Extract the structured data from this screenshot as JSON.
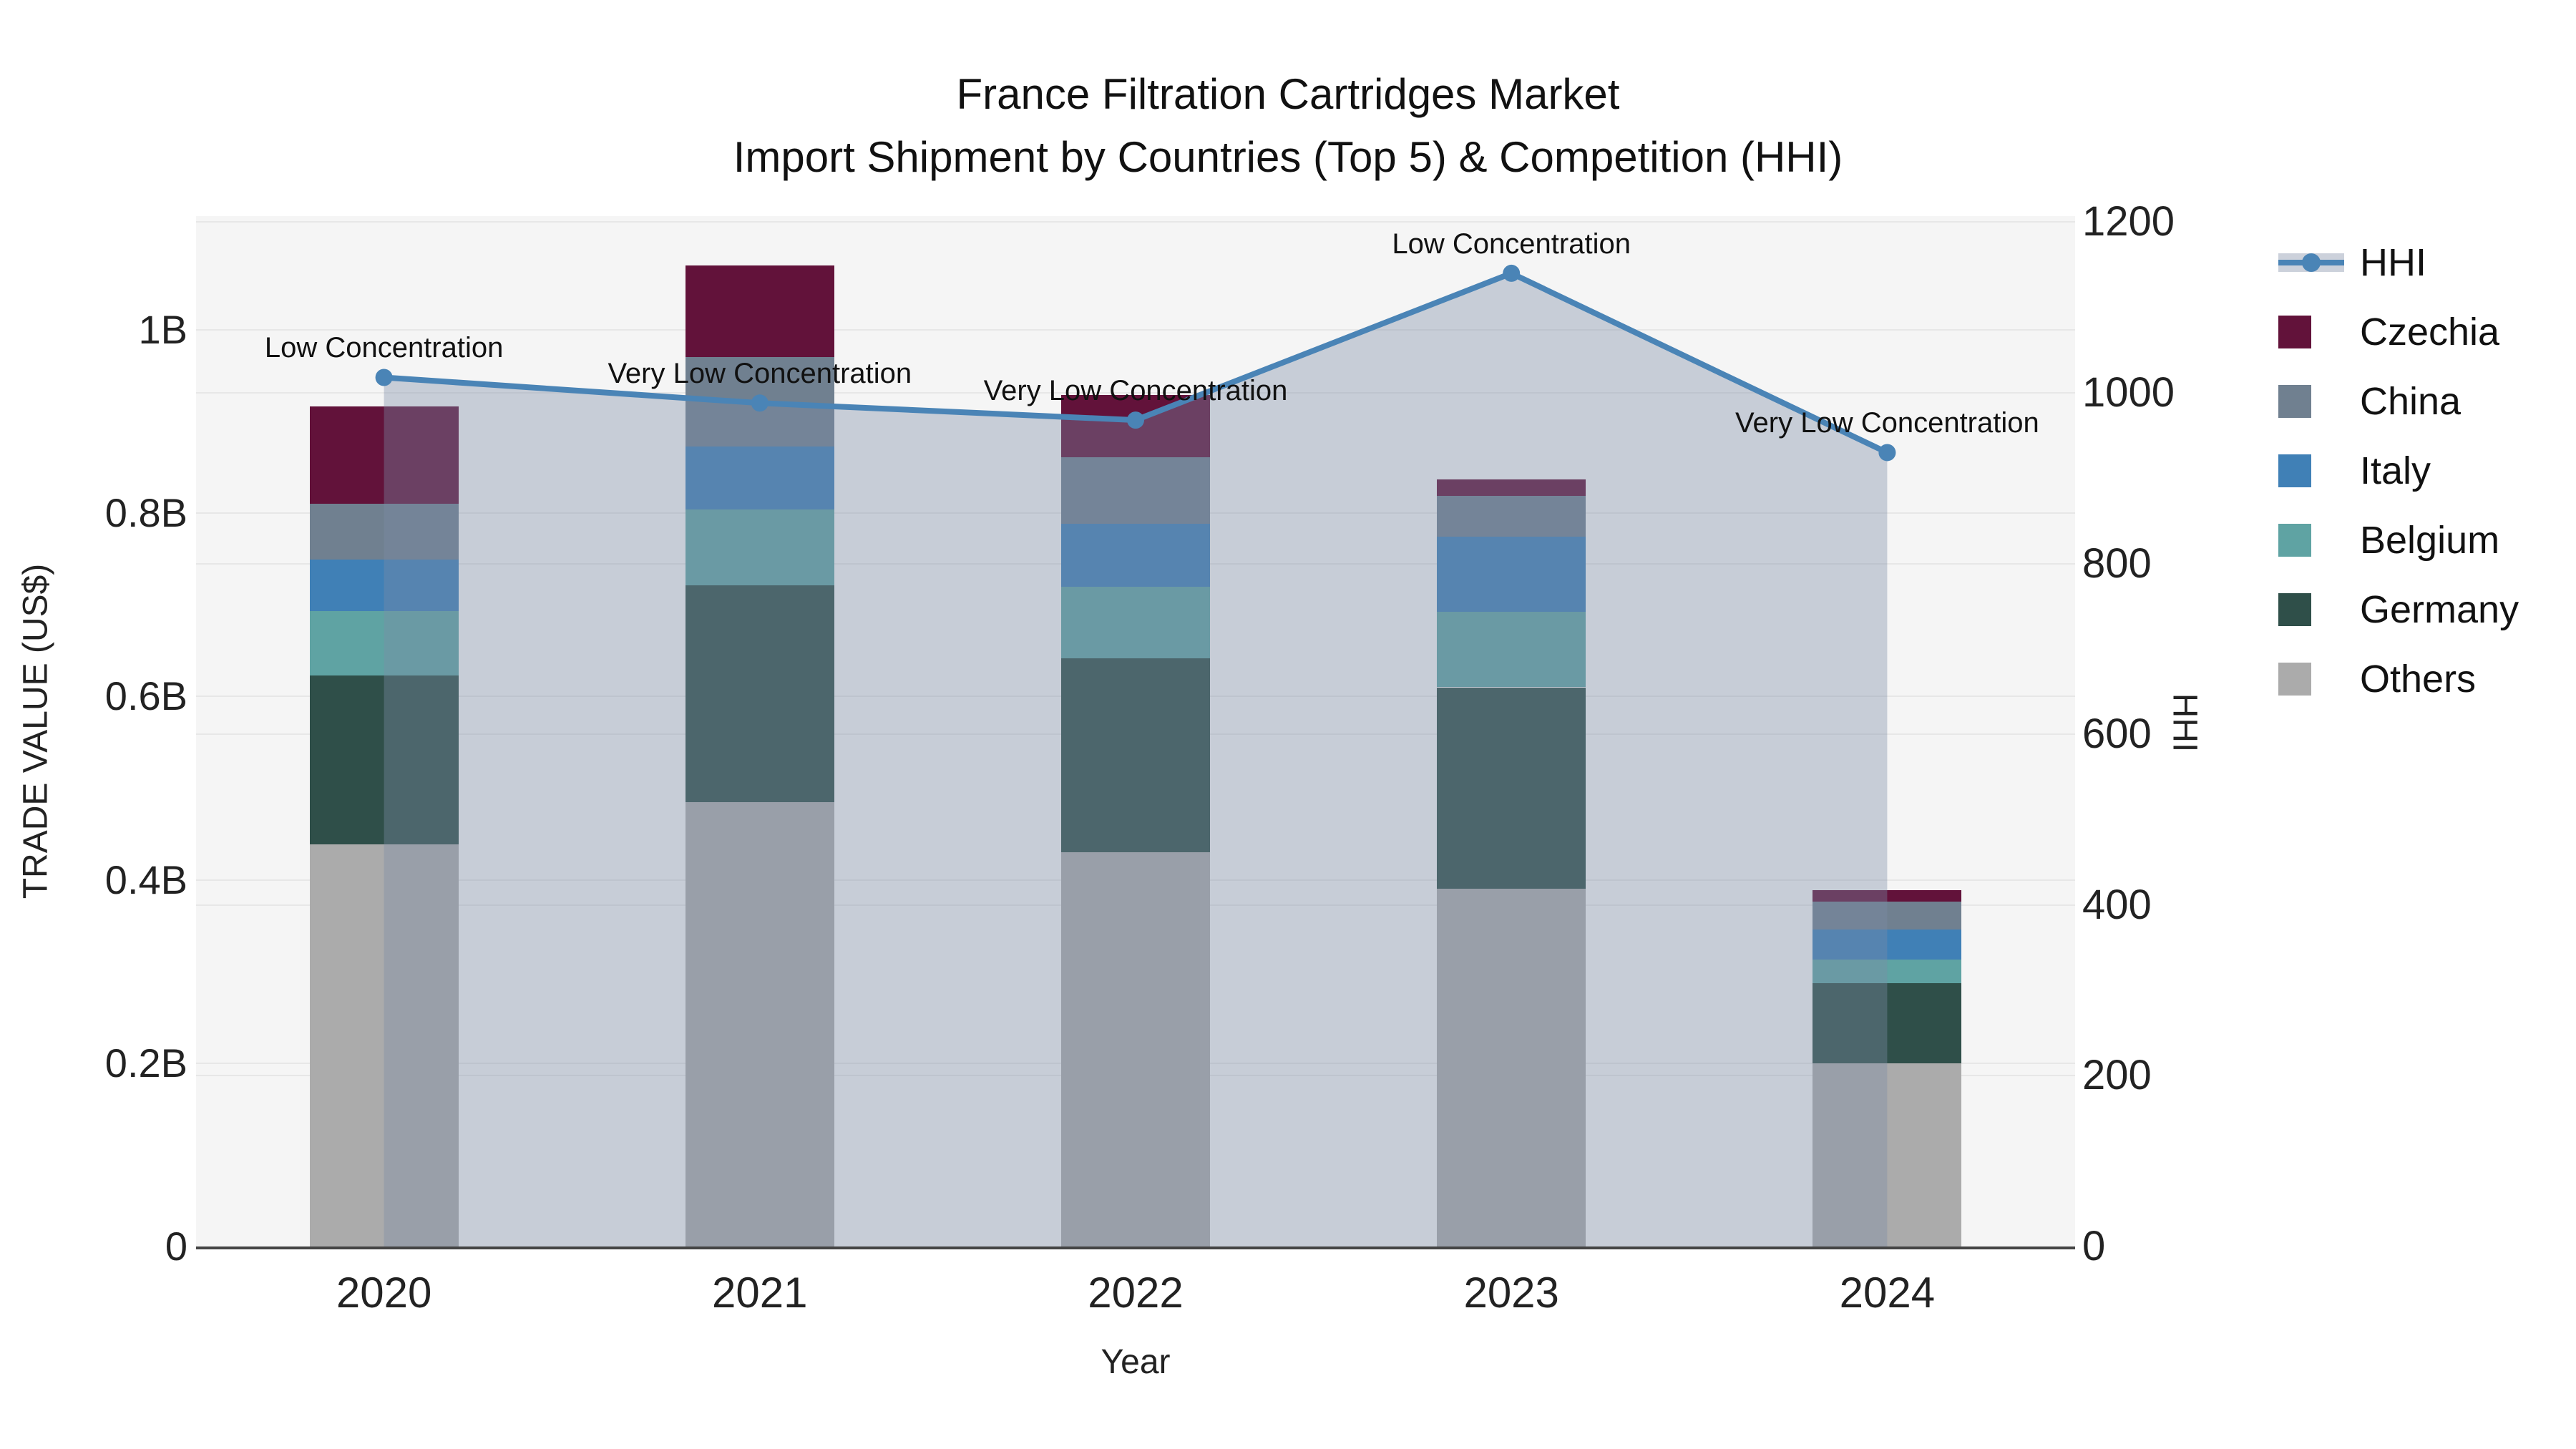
{
  "title": {
    "line1": "France Filtration Cartridges Market",
    "line2": "Import Shipment by Countries (Top 5) & Competition (HHI)"
  },
  "axes": {
    "x": {
      "title": "Year",
      "categories": [
        "2020",
        "2021",
        "2022",
        "2023",
        "2024"
      ]
    },
    "y_left": {
      "title": "TRADE VALUE (US$)",
      "ticks": [
        {
          "label": "0",
          "value": 0.0
        },
        {
          "label": "0.2B",
          "value": 0.2
        },
        {
          "label": "0.4B",
          "value": 0.4
        },
        {
          "label": "0.6B",
          "value": 0.6
        },
        {
          "label": "0.8B",
          "value": 0.8
        },
        {
          "label": "1B",
          "value": 1.0
        }
      ],
      "range_max_B": 1.124
    },
    "y_right": {
      "title": "HHI",
      "ticks": [
        {
          "label": "0",
          "value": 0
        },
        {
          "label": "200",
          "value": 200
        },
        {
          "label": "400",
          "value": 400
        },
        {
          "label": "600",
          "value": 600
        },
        {
          "label": "800",
          "value": 800
        },
        {
          "label": "1000",
          "value": 1000
        },
        {
          "label": "1200",
          "value": 1200
        }
      ],
      "range_max": 1207
    }
  },
  "legend": {
    "items": [
      {
        "label": "HHI",
        "symbol": "line",
        "color": "#4a84b6"
      },
      {
        "label": "Czechia",
        "symbol": "swatch",
        "color": "#62123a"
      },
      {
        "label": "China",
        "symbol": "swatch",
        "color": "#708090"
      },
      {
        "label": "Italy",
        "symbol": "swatch",
        "color": "#4080b6"
      },
      {
        "label": "Belgium",
        "symbol": "swatch",
        "color": "#5fa3a3"
      },
      {
        "label": "Germany",
        "symbol": "swatch",
        "color": "#2f4f49"
      },
      {
        "label": "Others",
        "symbol": "swatch",
        "color": "#ababab"
      }
    ]
  },
  "chart_data": {
    "type": "bar",
    "subtype": "stacked bars (left axis) + line with markers and area fill (right axis)",
    "title": "France Filtration Cartridges Market — Import Shipment by Countries (Top 5) & Competition (HHI)",
    "xlabel": "Year",
    "ylabel_left": "TRADE VALUE (US$)",
    "ylabel_right": "HHI",
    "categories": [
      "2020",
      "2021",
      "2022",
      "2023",
      "2024"
    ],
    "value_unit": "billion US$",
    "stack_order_bottom_to_top": [
      "Others",
      "Germany",
      "Belgium",
      "Italy",
      "China",
      "Czechia"
    ],
    "series": [
      {
        "name": "Others",
        "color": "#ababab",
        "values_B": [
          0.439,
          0.485,
          0.43,
          0.39,
          0.2
        ]
      },
      {
        "name": "Germany",
        "color": "#2f4f49",
        "values_B": [
          0.184,
          0.236,
          0.212,
          0.22,
          0.087
        ]
      },
      {
        "name": "Belgium",
        "color": "#5fa3a3",
        "values_B": [
          0.07,
          0.083,
          0.078,
          0.082,
          0.026
        ]
      },
      {
        "name": "Italy",
        "color": "#4080b6",
        "values_B": [
          0.056,
          0.069,
          0.068,
          0.082,
          0.033
        ]
      },
      {
        "name": "China",
        "color": "#708090",
        "values_B": [
          0.061,
          0.097,
          0.073,
          0.045,
          0.03
        ]
      },
      {
        "name": "Czechia",
        "color": "#62123a",
        "values_B": [
          0.106,
          0.1,
          0.068,
          0.018,
          0.013
        ]
      }
    ],
    "totals_B": [
      0.916,
      1.07,
      0.929,
      0.837,
      0.389
    ],
    "hhi_line": {
      "name": "HHI",
      "color": "#4a84b6",
      "area_fill": "rgba(124,139,166,0.38)",
      "values": [
        1018,
        988,
        968,
        1140,
        930
      ],
      "annotations": [
        "Low Concentration",
        "Very Low Concentration",
        "Very Low Concentration",
        "Low Concentration",
        "Very Low Concentration"
      ]
    },
    "y_left_lim_B": [
      0,
      1.124
    ],
    "y_right_lim": [
      0,
      1207
    ],
    "grid": "horizontal gridlines for both y axes",
    "legend_position": "outside top-right"
  },
  "colors": {
    "figure_bg": "#ffffff",
    "plot_bg": "#f5f5f5",
    "gridline": "#e7e7e7",
    "axis_line": "#454545",
    "text": "#1a1a1a",
    "legend_band": "#ccd1db"
  }
}
